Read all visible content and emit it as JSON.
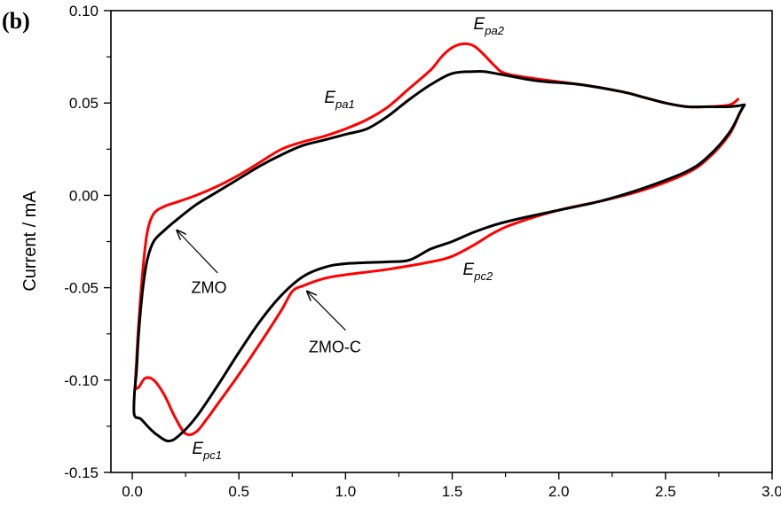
{
  "panel_label": "(b)",
  "chart_data": {
    "type": "line",
    "title": "",
    "xlabel": "",
    "ylabel": "Current  / mA",
    "xlim": [
      -0.1,
      3.0
    ],
    "ylim": [
      -0.15,
      0.1
    ],
    "x_ticks": [
      {
        "v": 0.0,
        "label": "0.0"
      },
      {
        "v": 0.5,
        "label": "0.5"
      },
      {
        "v": 1.0,
        "label": "1.0"
      },
      {
        "v": 1.5,
        "label": "1.5"
      },
      {
        "v": 2.0,
        "label": "2.0"
      },
      {
        "v": 2.5,
        "label": "2.5"
      },
      {
        "v": 3.0,
        "label": "3.0"
      }
    ],
    "y_ticks": [
      {
        "v": 0.1,
        "label": "0.10"
      },
      {
        "v": 0.05,
        "label": "0.05"
      },
      {
        "v": 0.0,
        "label": "0.00"
      },
      {
        "v": -0.05,
        "label": "-0.05"
      },
      {
        "v": -0.1,
        "label": "-0.10"
      },
      {
        "v": -0.15,
        "label": "-0.15"
      }
    ],
    "grid": false,
    "legend": "none",
    "series": [
      {
        "name": "ZMO-C",
        "color": "#ff0000",
        "points": [
          [
            2.84,
            0.052
          ],
          [
            2.8,
            0.049
          ],
          [
            2.7,
            0.048
          ],
          [
            2.6,
            0.048
          ],
          [
            2.5,
            0.05
          ],
          [
            2.4,
            0.053
          ],
          [
            2.3,
            0.056
          ],
          [
            2.1,
            0.06
          ],
          [
            1.9,
            0.063
          ],
          [
            1.75,
            0.066
          ],
          [
            1.7,
            0.07
          ],
          [
            1.65,
            0.076
          ],
          [
            1.6,
            0.081
          ],
          [
            1.55,
            0.082
          ],
          [
            1.5,
            0.08
          ],
          [
            1.45,
            0.075
          ],
          [
            1.4,
            0.068
          ],
          [
            1.3,
            0.058
          ],
          [
            1.2,
            0.048
          ],
          [
            1.1,
            0.041
          ],
          [
            1.0,
            0.036
          ],
          [
            0.9,
            0.032
          ],
          [
            0.8,
            0.029
          ],
          [
            0.7,
            0.025
          ],
          [
            0.6,
            0.018
          ],
          [
            0.5,
            0.011
          ],
          [
            0.4,
            0.005
          ],
          [
            0.3,
            0.0
          ],
          [
            0.2,
            -0.004
          ],
          [
            0.15,
            -0.006
          ],
          [
            0.1,
            -0.01
          ],
          [
            0.07,
            -0.02
          ],
          [
            0.05,
            -0.04
          ],
          [
            0.03,
            -0.07
          ],
          [
            0.02,
            -0.09
          ],
          [
            0.015,
            -0.103
          ],
          [
            0.03,
            -0.104
          ],
          [
            0.06,
            -0.099
          ],
          [
            0.1,
            -0.1
          ],
          [
            0.15,
            -0.108
          ],
          [
            0.2,
            -0.12
          ],
          [
            0.25,
            -0.129
          ],
          [
            0.3,
            -0.128
          ],
          [
            0.35,
            -0.121
          ],
          [
            0.4,
            -0.113
          ],
          [
            0.5,
            -0.097
          ],
          [
            0.6,
            -0.08
          ],
          [
            0.7,
            -0.062
          ],
          [
            0.75,
            -0.052
          ],
          [
            0.8,
            -0.049
          ],
          [
            0.9,
            -0.045
          ],
          [
            1.0,
            -0.043
          ],
          [
            1.2,
            -0.04
          ],
          [
            1.4,
            -0.036
          ],
          [
            1.5,
            -0.033
          ],
          [
            1.6,
            -0.027
          ],
          [
            1.7,
            -0.02
          ],
          [
            1.8,
            -0.015
          ],
          [
            2.0,
            -0.008
          ],
          [
            2.2,
            -0.003
          ],
          [
            2.4,
            0.003
          ],
          [
            2.6,
            0.012
          ],
          [
            2.7,
            0.02
          ],
          [
            2.8,
            0.033
          ],
          [
            2.85,
            0.045
          ],
          [
            2.87,
            0.049
          ]
        ]
      },
      {
        "name": "ZMO",
        "color": "#000000",
        "points": [
          [
            2.87,
            0.049
          ],
          [
            2.8,
            0.048
          ],
          [
            2.7,
            0.048
          ],
          [
            2.6,
            0.048
          ],
          [
            2.5,
            0.05
          ],
          [
            2.4,
            0.053
          ],
          [
            2.3,
            0.056
          ],
          [
            2.1,
            0.06
          ],
          [
            1.9,
            0.062
          ],
          [
            1.75,
            0.065
          ],
          [
            1.65,
            0.067
          ],
          [
            1.6,
            0.067
          ],
          [
            1.5,
            0.066
          ],
          [
            1.4,
            0.06
          ],
          [
            1.3,
            0.052
          ],
          [
            1.2,
            0.043
          ],
          [
            1.1,
            0.036
          ],
          [
            1.0,
            0.033
          ],
          [
            0.9,
            0.03
          ],
          [
            0.8,
            0.027
          ],
          [
            0.7,
            0.022
          ],
          [
            0.6,
            0.016
          ],
          [
            0.5,
            0.009
          ],
          [
            0.4,
            0.002
          ],
          [
            0.3,
            -0.005
          ],
          [
            0.2,
            -0.014
          ],
          [
            0.15,
            -0.019
          ],
          [
            0.1,
            -0.025
          ],
          [
            0.07,
            -0.035
          ],
          [
            0.05,
            -0.05
          ],
          [
            0.03,
            -0.075
          ],
          [
            0.02,
            -0.095
          ],
          [
            0.01,
            -0.108
          ],
          [
            0.01,
            -0.119
          ],
          [
            0.04,
            -0.121
          ],
          [
            0.08,
            -0.126
          ],
          [
            0.12,
            -0.13
          ],
          [
            0.17,
            -0.133
          ],
          [
            0.22,
            -0.13
          ],
          [
            0.3,
            -0.12
          ],
          [
            0.4,
            -0.103
          ],
          [
            0.5,
            -0.085
          ],
          [
            0.6,
            -0.068
          ],
          [
            0.7,
            -0.054
          ],
          [
            0.8,
            -0.044
          ],
          [
            0.9,
            -0.039
          ],
          [
            1.0,
            -0.037
          ],
          [
            1.2,
            -0.036
          ],
          [
            1.3,
            -0.035
          ],
          [
            1.4,
            -0.029
          ],
          [
            1.5,
            -0.025
          ],
          [
            1.6,
            -0.02
          ],
          [
            1.7,
            -0.016
          ],
          [
            1.8,
            -0.013
          ],
          [
            2.0,
            -0.008
          ],
          [
            2.2,
            -0.003
          ],
          [
            2.4,
            0.004
          ],
          [
            2.6,
            0.013
          ],
          [
            2.7,
            0.021
          ],
          [
            2.8,
            0.034
          ],
          [
            2.85,
            0.045
          ],
          [
            2.87,
            0.049
          ]
        ]
      }
    ],
    "annotations": [
      {
        "main": "E",
        "sub": "pa2",
        "x": 1.6,
        "y": 0.09
      },
      {
        "main": "E",
        "sub": "pa1",
        "x": 0.9,
        "y": 0.05
      },
      {
        "main": "E",
        "sub": "pc2",
        "x": 1.55,
        "y": -0.043
      },
      {
        "main": "E",
        "sub": "pc1",
        "x": 0.28,
        "y": -0.14
      }
    ],
    "callouts": [
      {
        "label": "ZMO",
        "text_x": 0.36,
        "text_y": -0.05,
        "arrow_from": [
          0.4,
          -0.042
        ],
        "arrow_to": [
          0.21,
          -0.019
        ]
      },
      {
        "label": "ZMO-C",
        "text_x": 0.95,
        "text_y": -0.082,
        "arrow_from": [
          1.0,
          -0.073
        ],
        "arrow_to": [
          0.82,
          -0.052
        ]
      }
    ]
  }
}
